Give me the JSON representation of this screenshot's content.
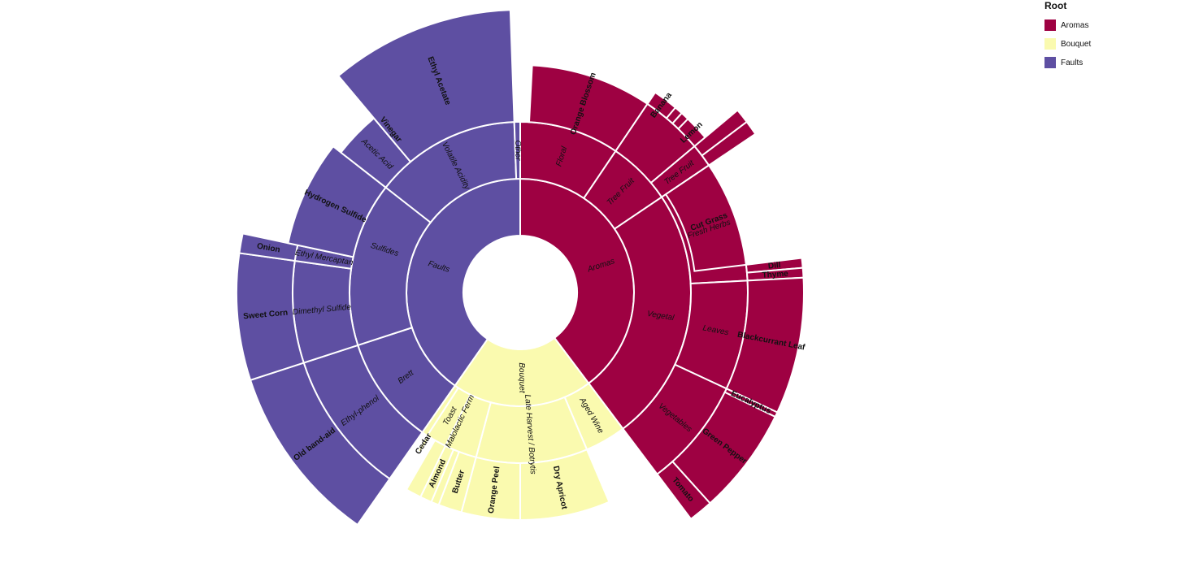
{
  "chart_data": {
    "type": "sunburst",
    "legend_title": "Root",
    "legend_position": "top-right",
    "colors": {
      "Aromas": "#9e0142",
      "Bouquet": "#fafaaf",
      "Faults": "#5e4fa2"
    },
    "tree": [
      {
        "name": "Aromas",
        "children": [
          {
            "name": "Floral",
            "children": [
              {
                "name": "Orange Blossom"
              },
              {
                "name": "",
                "children": [
                  {
                    "name": ""
                  },
                  {
                    "name": ""
                  }
                ]
              }
            ]
          },
          {
            "name": "Tree Fruit",
            "children": [
              {
                "name": "",
                "children": [
                  {
                    "name": "Banana"
                  },
                  {
                    "name": ""
                  },
                  {
                    "name": ""
                  },
                  {
                    "name": "Lemon"
                  }
                ]
              },
              {
                "name": "Tree Fruit",
                "children": [
                  {
                    "name": ""
                  },
                  {
                    "name": ""
                  }
                ]
              }
            ]
          },
          {
            "name": "Vegetal",
            "children": [
              {
                "name": "Fresh Herbs",
                "children": [
                  {
                    "name": "Cut Grass"
                  },
                  {
                    "name": "Dill"
                  },
                  {
                    "name": "Thyme"
                  }
                ]
              },
              {
                "name": "Leaves",
                "children": [
                  {
                    "name": "Blackcurrant Leaf"
                  },
                  {
                    "name": "Eucalyptus"
                  }
                ]
              },
              {
                "name": "Vegetables",
                "children": [
                  {
                    "name": "Green Pepper"
                  },
                  {
                    "name": "Tomato"
                  }
                ]
              }
            ]
          }
        ]
      },
      {
        "name": "Bouquet",
        "children": [
          {
            "name": "Aged Wine"
          },
          {
            "name": "Late Harvest / Botrytis",
            "children": [
              {
                "name": "Dry Apricot"
              },
              {
                "name": "Orange Peel"
              }
            ]
          },
          {
            "name": "Malolactic Ferm",
            "children": [
              {
                "name": "Butter"
              },
              {
                "name": ""
              },
              {
                "name": "Almond"
              }
            ]
          },
          {
            "name": "Toast",
            "children": [
              {
                "name": ""
              },
              {
                "name": "Cedar"
              }
            ]
          },
          {
            "name": ""
          }
        ]
      },
      {
        "name": "Faults",
        "children": [
          {
            "name": "Brett",
            "children": [
              {
                "name": "Ethyl-phenol",
                "children": [
                  {
                    "name": "Old band-aid"
                  }
                ]
              }
            ]
          },
          {
            "name": "Sulfides",
            "children": [
              {
                "name": "Dimethyl Sulfide",
                "children": [
                  {
                    "name": "Sweet Corn"
                  }
                ]
              },
              {
                "name": "Ethyl Mercaptan",
                "children": [
                  {
                    "name": "Onion"
                  }
                ]
              },
              {
                "name": "Hydrogen Sulfide"
              }
            ]
          },
          {
            "name": "Volatile Acidity",
            "children": [
              {
                "name": "Acetic Acid",
                "children": [
                  {
                    "name": "Vinegar"
                  }
                ]
              },
              {
                "name": "Ethyl Acetate"
              }
            ]
          },
          {
            "name": "Other"
          }
        ]
      }
    ]
  }
}
